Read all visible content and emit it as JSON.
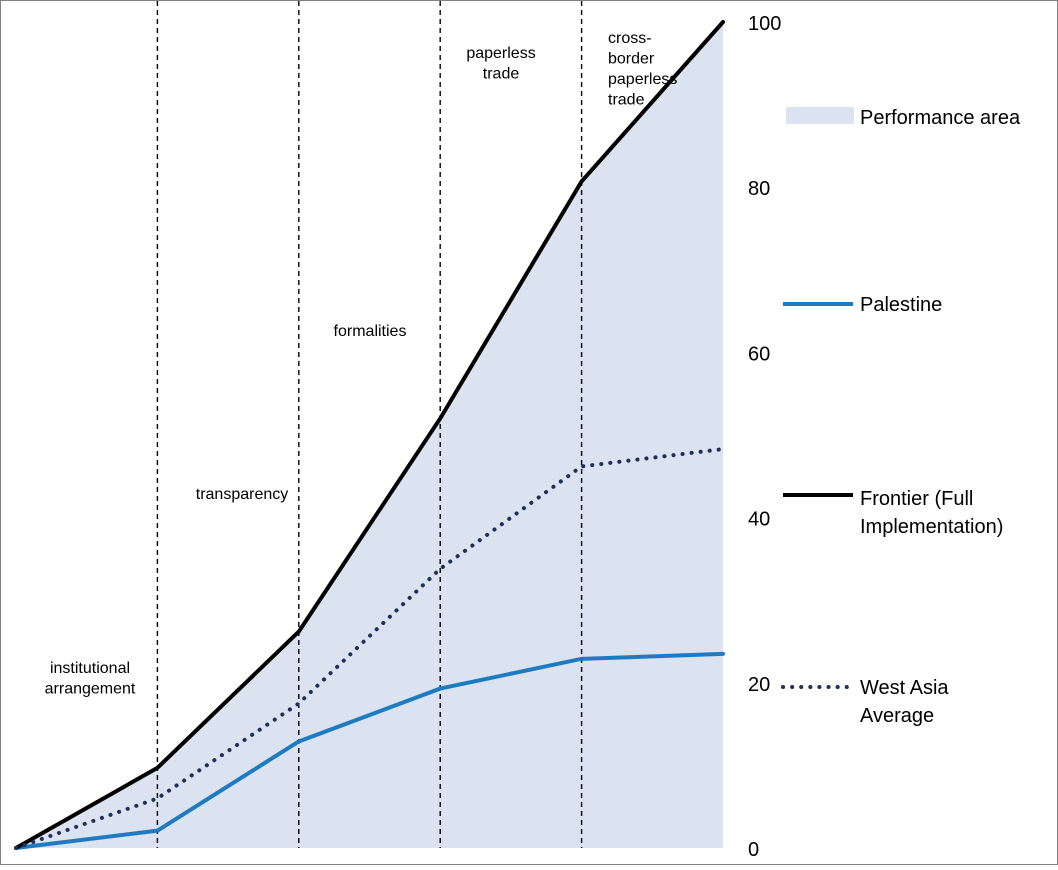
{
  "chart_data": {
    "type": "line",
    "categories": [
      "",
      "institutional arrangement",
      "transparency",
      "formalities",
      "paperless trade",
      "cross-border paperless trade"
    ],
    "x": [
      0,
      1,
      2,
      3,
      4,
      5
    ],
    "y_ticks": [
      "0",
      "20",
      "40",
      "60",
      "80",
      "100"
    ],
    "ylim": [
      0,
      100
    ],
    "grid": "vertical dashed dividers at category boundaries",
    "legend_position": "right",
    "series": [
      {
        "name": "Performance area",
        "kind": "area",
        "color": "#dbe3f1",
        "values": [
          0,
          9.7,
          26.2,
          52.0,
          80.7,
          100
        ]
      },
      {
        "name": "Palestine",
        "kind": "line",
        "color": "#1f7bc1",
        "values": [
          0,
          2.1,
          12.9,
          19.3,
          22.9,
          23.5
        ]
      },
      {
        "name": "Frontier (Full Implementation)",
        "kind": "line",
        "color": "#000000",
        "values": [
          0,
          9.7,
          26.2,
          52.0,
          80.7,
          100
        ]
      },
      {
        "name": "West Asia Average",
        "kind": "dotted",
        "color": "#1f2e5a",
        "values": [
          0,
          6.0,
          17.5,
          33.8,
          46.2,
          48.3
        ]
      }
    ],
    "segment_labels": [
      {
        "lines": [
          "institutional",
          "arrangement"
        ]
      },
      {
        "lines": [
          "transparency"
        ]
      },
      {
        "lines": [
          "formalities"
        ]
      },
      {
        "lines": [
          "paperless",
          "trade"
        ]
      },
      {
        "lines": [
          "cross-",
          "border",
          "paperless",
          "trade"
        ]
      }
    ],
    "legend": [
      {
        "series": "Performance area",
        "lines": [
          "Performance area"
        ]
      },
      {
        "series": "Palestine",
        "lines": [
          "Palestine"
        ]
      },
      {
        "series": "Frontier (Full Implementation)",
        "lines": [
          "Frontier (Full",
          "Implementation)"
        ]
      },
      {
        "series": "West Asia Average",
        "lines": [
          "West Asia",
          "Average"
        ]
      }
    ]
  }
}
